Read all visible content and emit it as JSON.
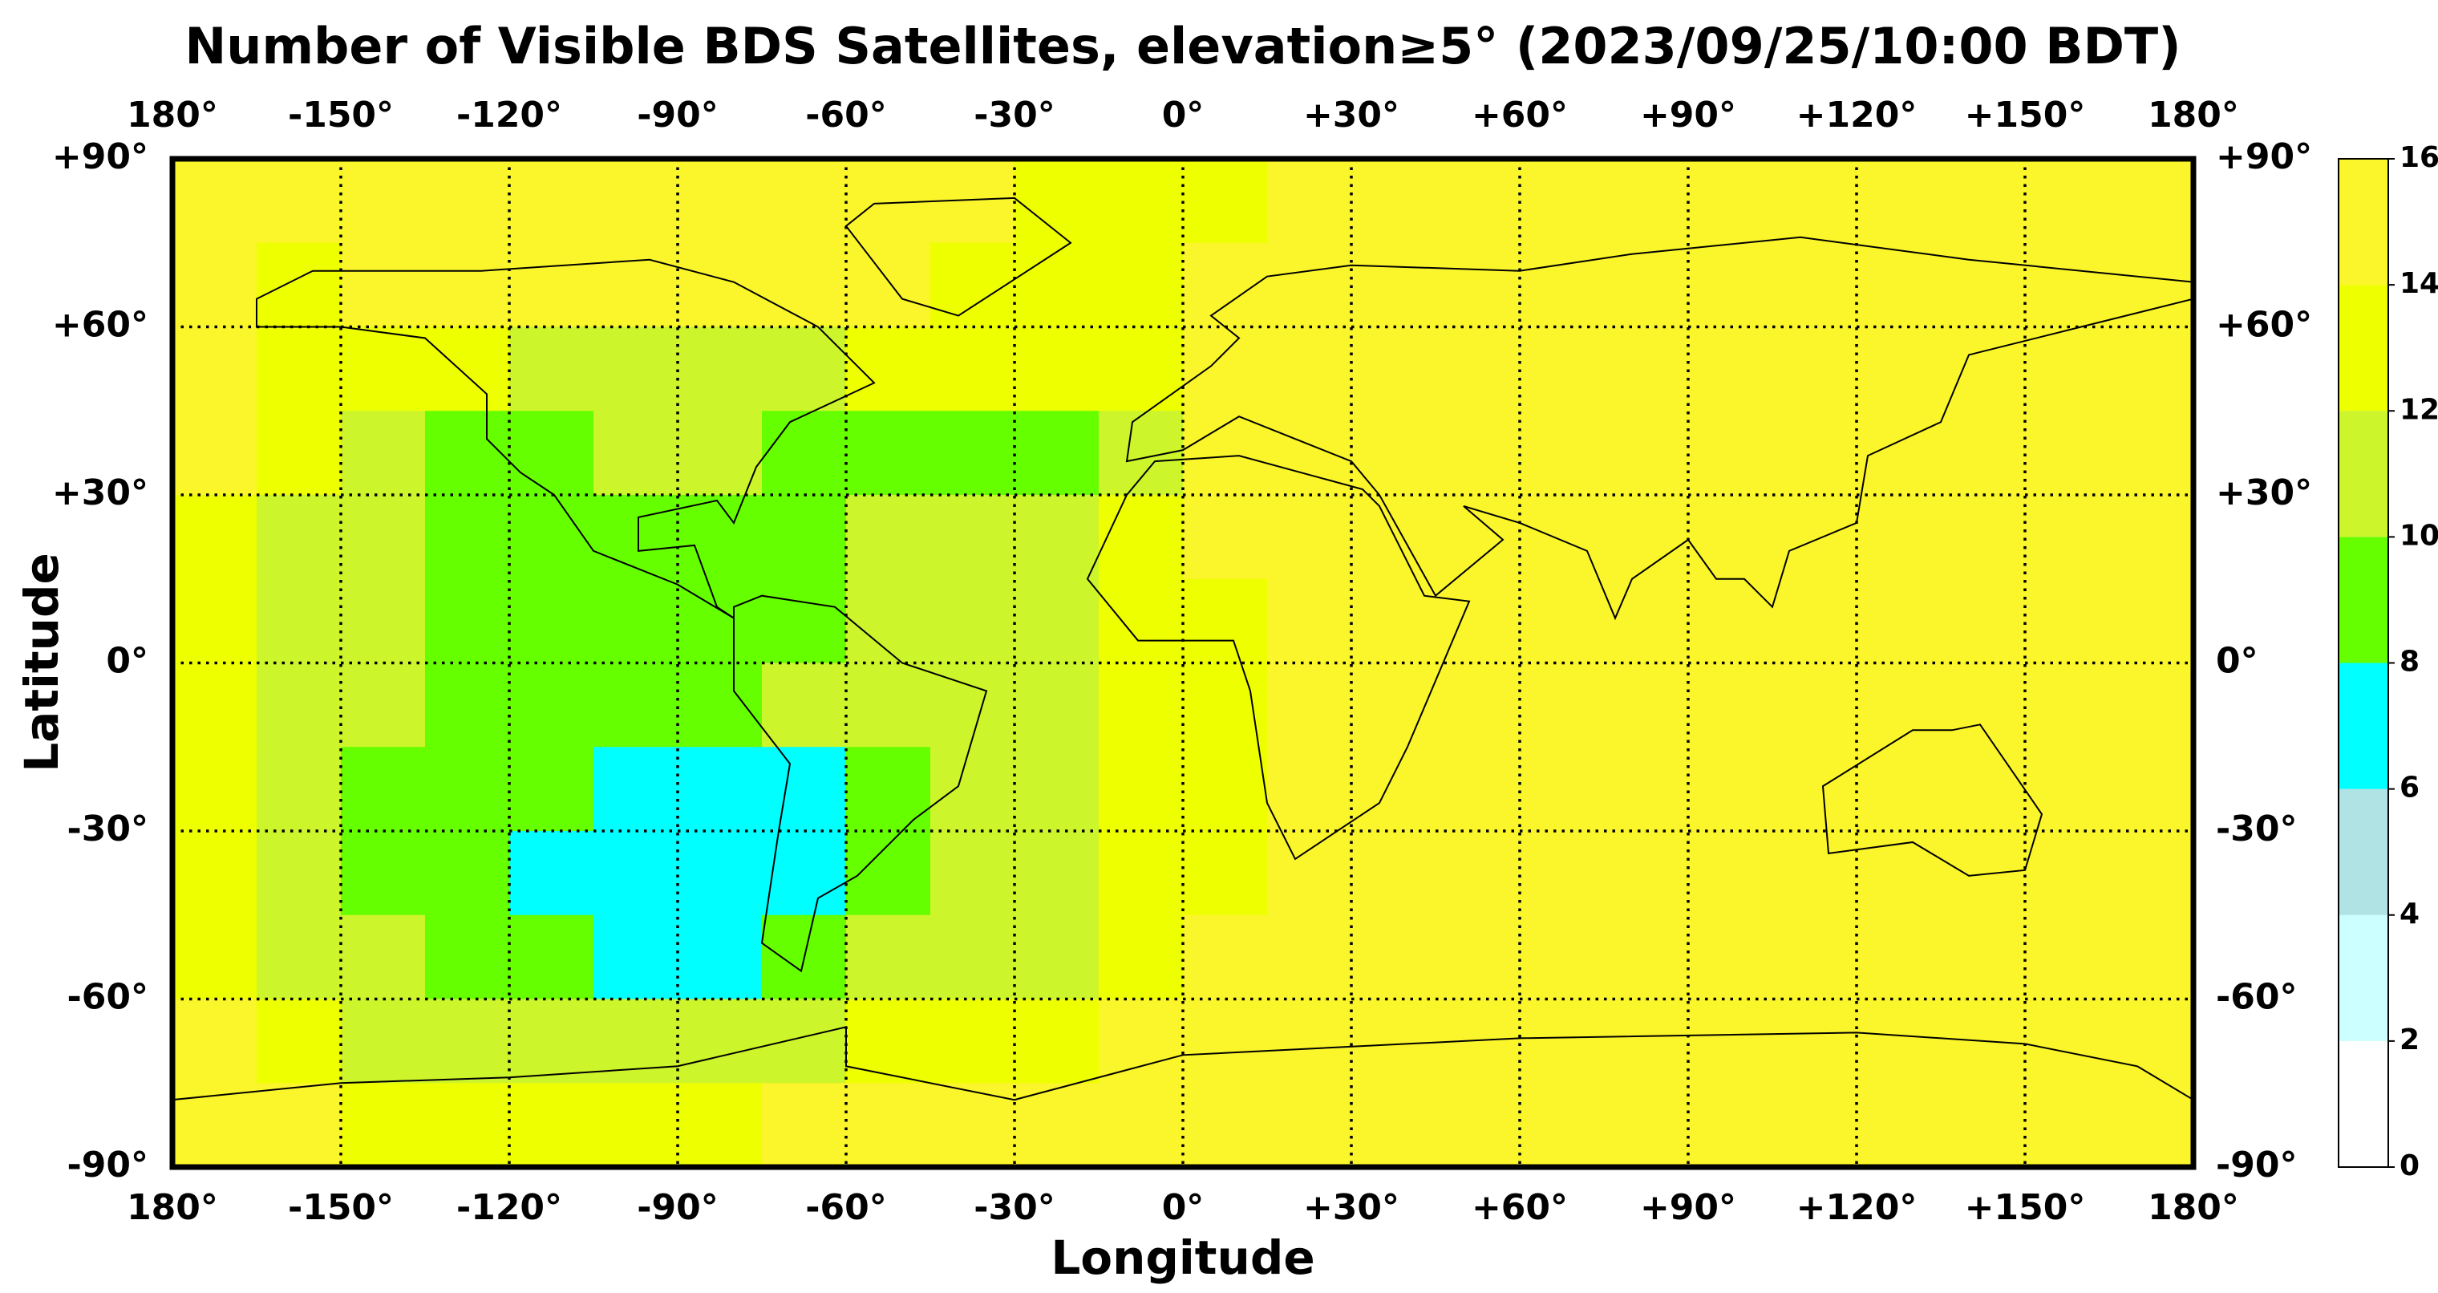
{
  "chart_data": {
    "type": "heatmap",
    "title": "Number of Visible BDS Satellites, elevation≥5° (2023/09/25/10:00 BDT)",
    "xlabel": "Longitude",
    "ylabel": "Latitude",
    "xlim": [
      -180,
      180
    ],
    "ylim": [
      -90,
      90
    ],
    "xticks": [
      {
        "value": -180,
        "label": "180°"
      },
      {
        "value": -150,
        "label": "-150°"
      },
      {
        "value": -120,
        "label": "-120°"
      },
      {
        "value": -90,
        "label": "-90°"
      },
      {
        "value": -60,
        "label": "-60°"
      },
      {
        "value": -30,
        "label": "-30°"
      },
      {
        "value": 0,
        "label": "0°"
      },
      {
        "value": 30,
        "label": "+30°"
      },
      {
        "value": 60,
        "label": "+60°"
      },
      {
        "value": 90,
        "label": "+90°"
      },
      {
        "value": 120,
        "label": "+120°"
      },
      {
        "value": 150,
        "label": "+150°"
      },
      {
        "value": 180,
        "label": "180°"
      }
    ],
    "yticks": [
      {
        "value": 90,
        "label": "+90°"
      },
      {
        "value": 60,
        "label": "+60°"
      },
      {
        "value": 30,
        "label": "+30°"
      },
      {
        "value": 0,
        "label": "0°"
      },
      {
        "value": -30,
        "label": "-30°"
      },
      {
        "value": -60,
        "label": "-60°"
      },
      {
        "value": -90,
        "label": "-90°"
      }
    ],
    "grid": true,
    "x": [
      -172.5,
      -157.5,
      -142.5,
      -127.5,
      -112.5,
      -97.5,
      -82.5,
      -67.5,
      -52.5,
      -37.5,
      -22.5,
      -7.5,
      7.5,
      22.5,
      37.5,
      52.5,
      67.5,
      82.5,
      97.5,
      112.5,
      127.5,
      142.5,
      157.5,
      172.5
    ],
    "y": [
      82.5,
      67.5,
      52.5,
      37.5,
      22.5,
      7.5,
      -7.5,
      -22.5,
      -37.5,
      -52.5,
      -67.5,
      -82.5
    ],
    "values": [
      [
        15,
        15,
        15,
        15,
        15,
        15,
        15,
        15,
        15,
        15,
        13,
        13,
        13,
        15,
        15,
        15,
        15,
        15,
        15,
        15,
        15,
        15,
        15,
        15
      ],
      [
        15,
        13,
        15,
        15,
        15,
        15,
        15,
        15,
        15,
        13,
        13,
        13,
        15,
        15,
        15,
        15,
        15,
        15,
        15,
        15,
        15,
        15,
        15,
        15
      ],
      [
        15,
        13,
        13,
        13,
        11,
        11,
        11,
        11,
        13,
        13,
        13,
        13,
        15,
        15,
        15,
        15,
        15,
        15,
        15,
        15,
        15,
        15,
        15,
        15
      ],
      [
        15,
        13,
        11,
        9,
        9,
        11,
        11,
        9,
        9,
        9,
        9,
        11,
        15,
        15,
        15,
        15,
        15,
        15,
        15,
        15,
        15,
        15,
        15,
        15
      ],
      [
        13,
        11,
        11,
        9,
        9,
        9,
        9,
        9,
        11,
        11,
        11,
        13,
        15,
        15,
        15,
        15,
        15,
        15,
        15,
        15,
        15,
        15,
        15,
        15
      ],
      [
        13,
        11,
        11,
        9,
        9,
        9,
        9,
        9,
        11,
        11,
        11,
        13,
        13,
        15,
        15,
        15,
        15,
        15,
        15,
        15,
        15,
        15,
        15,
        15
      ],
      [
        13,
        11,
        11,
        9,
        9,
        9,
        9,
        11,
        11,
        11,
        11,
        13,
        13,
        15,
        15,
        15,
        15,
        15,
        15,
        15,
        15,
        15,
        15,
        15
      ],
      [
        13,
        11,
        9,
        9,
        9,
        7,
        7,
        7,
        9,
        11,
        11,
        13,
        13,
        15,
        15,
        15,
        15,
        15,
        15,
        15,
        15,
        15,
        15,
        15
      ],
      [
        13,
        11,
        9,
        9,
        7,
        7,
        7,
        7,
        9,
        11,
        11,
        13,
        13,
        15,
        15,
        15,
        15,
        15,
        15,
        15,
        15,
        15,
        15,
        15
      ],
      [
        13,
        11,
        11,
        9,
        9,
        7,
        7,
        9,
        11,
        11,
        11,
        13,
        15,
        15,
        15,
        15,
        15,
        15,
        15,
        15,
        15,
        15,
        15,
        15
      ],
      [
        15,
        13,
        11,
        11,
        11,
        11,
        11,
        11,
        13,
        13,
        13,
        15,
        15,
        15,
        15,
        15,
        15,
        15,
        15,
        15,
        15,
        15,
        15,
        15
      ],
      [
        15,
        15,
        13,
        13,
        13,
        13,
        13,
        15,
        15,
        15,
        15,
        15,
        15,
        15,
        15,
        15,
        15,
        15,
        15,
        15,
        15,
        15,
        15,
        15
      ]
    ],
    "colorbar": {
      "levels": [
        0,
        2,
        4,
        6,
        8,
        10,
        12,
        14,
        16
      ],
      "colors": [
        "#ffffff",
        "#ccffff",
        "#b0e4e4",
        "#00ffff",
        "#66ff00",
        "#ccf52b",
        "#eeff00",
        "#fbf52b"
      ],
      "ticks": [
        0,
        2,
        4,
        6,
        8,
        10,
        12,
        14,
        16
      ]
    }
  }
}
